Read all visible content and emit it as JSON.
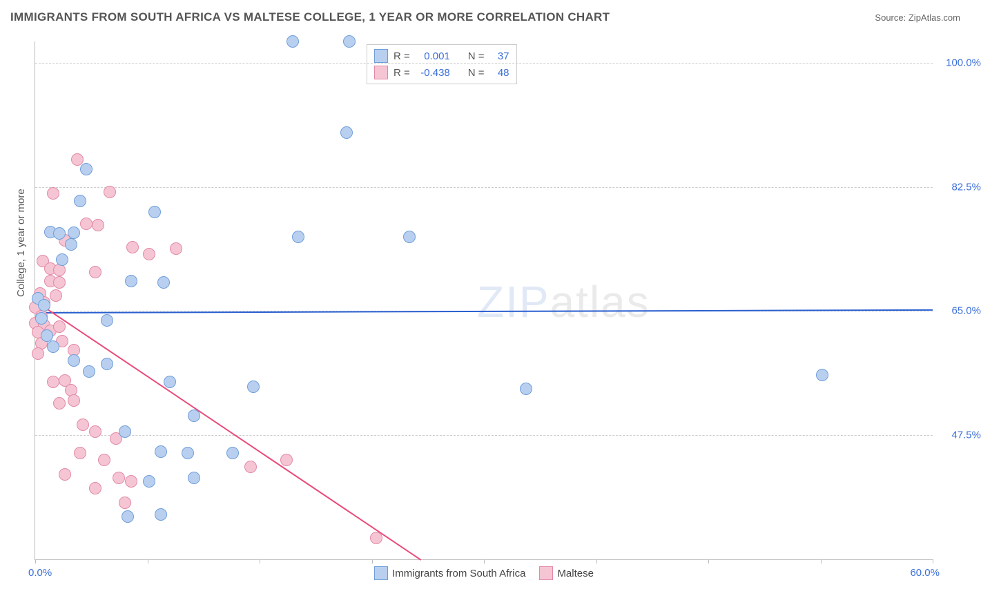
{
  "header": {
    "title": "IMMIGRANTS FROM SOUTH AFRICA VS MALTESE COLLEGE, 1 YEAR OR MORE CORRELATION CHART",
    "source_label": "Source:",
    "source_name": "ZipAtlas.com"
  },
  "axes": {
    "y_title": "College, 1 year or more",
    "x_min_label": "0.0%",
    "x_max_label": "60.0%",
    "x_min": 0.0,
    "x_max": 60.0,
    "y_min": 30.0,
    "y_max": 103.0,
    "y_ticks": [
      {
        "value": 47.5,
        "label": "47.5%"
      },
      {
        "value": 65.0,
        "label": "65.0%"
      },
      {
        "value": 82.5,
        "label": "82.5%"
      },
      {
        "value": 100.0,
        "label": "100.0%"
      }
    ],
    "x_tick_positions": [
      0,
      7.5,
      15,
      22.5,
      30,
      37.5,
      45,
      52.5,
      60
    ]
  },
  "colors": {
    "series_a_fill": "#b9cfef",
    "series_a_stroke": "#6f9ed9",
    "series_b_fill": "#f5c5d4",
    "series_b_stroke": "#e18aa6",
    "trend_a": "#2a5fd0",
    "trend_b": "#e94b7a",
    "grid": "#cccccc",
    "axis": "#bbbbbb",
    "tick_label": "#3b6fd9",
    "title_text": "#555555"
  },
  "legend_stats": {
    "series_a": {
      "R_label": "R =",
      "R_value": "0.001",
      "N_label": "N =",
      "N_value": "37"
    },
    "series_b": {
      "R_label": "R =",
      "R_value": "-0.438",
      "N_label": "N =",
      "N_value": "48"
    }
  },
  "legend_bottom": {
    "series_a_label": "Immigrants from South Africa",
    "series_b_label": "Maltese"
  },
  "watermark": {
    "part1": "ZIP",
    "part2": "atlas"
  },
  "trend_lines": {
    "a": {
      "x1": 0.0,
      "y1": 64.8,
      "x2": 60.0,
      "y2": 65.2,
      "width": 2.5
    },
    "b": {
      "x1": 0.0,
      "y1": 66.5,
      "x2": 25.8,
      "y2": 30.0,
      "width": 2
    }
  },
  "series_a_points": [
    {
      "x": 17.2,
      "y": 103.0
    },
    {
      "x": 21.0,
      "y": 103.0
    },
    {
      "x": 3.4,
      "y": 85.0
    },
    {
      "x": 20.8,
      "y": 90.2
    },
    {
      "x": 3.0,
      "y": 80.5
    },
    {
      "x": 8.0,
      "y": 79.0
    },
    {
      "x": 1.0,
      "y": 76.1
    },
    {
      "x": 1.6,
      "y": 75.9
    },
    {
      "x": 2.6,
      "y": 76.0
    },
    {
      "x": 2.4,
      "y": 74.4
    },
    {
      "x": 17.6,
      "y": 75.5
    },
    {
      "x": 25.0,
      "y": 75.5
    },
    {
      "x": 1.8,
      "y": 72.2
    },
    {
      "x": 6.4,
      "y": 69.2
    },
    {
      "x": 8.6,
      "y": 69.0
    },
    {
      "x": 0.2,
      "y": 66.8
    },
    {
      "x": 0.6,
      "y": 65.8
    },
    {
      "x": 0.4,
      "y": 64.0
    },
    {
      "x": 4.8,
      "y": 63.7
    },
    {
      "x": 0.8,
      "y": 61.5
    },
    {
      "x": 1.2,
      "y": 60.0
    },
    {
      "x": 32.8,
      "y": 54.0
    },
    {
      "x": 52.6,
      "y": 56.0
    },
    {
      "x": 9.0,
      "y": 55.0
    },
    {
      "x": 10.6,
      "y": 50.2
    },
    {
      "x": 14.6,
      "y": 54.3
    },
    {
      "x": 6.0,
      "y": 48.0
    },
    {
      "x": 8.4,
      "y": 45.2
    },
    {
      "x": 10.2,
      "y": 45.0
    },
    {
      "x": 13.2,
      "y": 45.0
    },
    {
      "x": 7.6,
      "y": 41.0
    },
    {
      "x": 10.6,
      "y": 41.5
    },
    {
      "x": 6.2,
      "y": 36.0
    },
    {
      "x": 8.4,
      "y": 36.3
    },
    {
      "x": 2.6,
      "y": 58.0
    },
    {
      "x": 3.6,
      "y": 56.5
    },
    {
      "x": 4.8,
      "y": 57.5
    }
  ],
  "series_b_points": [
    {
      "x": 2.8,
      "y": 86.4
    },
    {
      "x": 1.2,
      "y": 81.6
    },
    {
      "x": 5.0,
      "y": 81.8
    },
    {
      "x": 3.4,
      "y": 77.3
    },
    {
      "x": 4.2,
      "y": 77.1
    },
    {
      "x": 2.0,
      "y": 75.0
    },
    {
      "x": 6.5,
      "y": 74.0
    },
    {
      "x": 7.6,
      "y": 73.0
    },
    {
      "x": 9.4,
      "y": 73.8
    },
    {
      "x": 0.5,
      "y": 72.0
    },
    {
      "x": 1.0,
      "y": 71.0
    },
    {
      "x": 1.6,
      "y": 70.8
    },
    {
      "x": 1.0,
      "y": 69.2
    },
    {
      "x": 1.6,
      "y": 69.0
    },
    {
      "x": 4.0,
      "y": 70.5
    },
    {
      "x": 0.3,
      "y": 67.5
    },
    {
      "x": 0.2,
      "y": 66.0
    },
    {
      "x": 0.6,
      "y": 66.2
    },
    {
      "x": 1.4,
      "y": 67.2
    },
    {
      "x": 0.0,
      "y": 65.5
    },
    {
      "x": 0.4,
      "y": 64.3
    },
    {
      "x": 0.0,
      "y": 63.3
    },
    {
      "x": 0.6,
      "y": 63.0
    },
    {
      "x": 0.2,
      "y": 62.0
    },
    {
      "x": 1.0,
      "y": 62.2
    },
    {
      "x": 1.6,
      "y": 62.8
    },
    {
      "x": 0.4,
      "y": 60.5
    },
    {
      "x": 1.8,
      "y": 60.8
    },
    {
      "x": 0.2,
      "y": 59.0
    },
    {
      "x": 2.6,
      "y": 59.5
    },
    {
      "x": 1.2,
      "y": 55.0
    },
    {
      "x": 2.0,
      "y": 55.2
    },
    {
      "x": 2.4,
      "y": 53.8
    },
    {
      "x": 1.6,
      "y": 52.0
    },
    {
      "x": 2.6,
      "y": 52.4
    },
    {
      "x": 3.2,
      "y": 49.0
    },
    {
      "x": 4.0,
      "y": 48.0
    },
    {
      "x": 5.4,
      "y": 47.0
    },
    {
      "x": 5.6,
      "y": 41.5
    },
    {
      "x": 4.0,
      "y": 40.0
    },
    {
      "x": 2.0,
      "y": 42.0
    },
    {
      "x": 6.0,
      "y": 38.0
    },
    {
      "x": 14.4,
      "y": 43.0
    },
    {
      "x": 16.8,
      "y": 44.0
    },
    {
      "x": 6.4,
      "y": 41.0
    },
    {
      "x": 22.8,
      "y": 33.0
    },
    {
      "x": 3.0,
      "y": 45.0
    },
    {
      "x": 4.6,
      "y": 44.0
    }
  ]
}
